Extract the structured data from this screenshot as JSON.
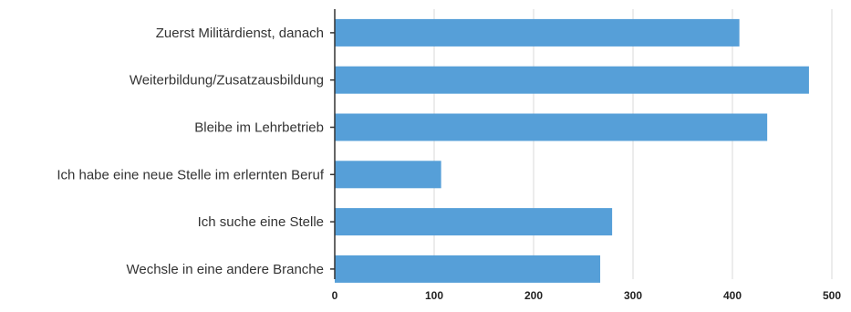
{
  "chart_data": {
    "type": "bar",
    "orientation": "horizontal",
    "categories": [
      "Zuerst Militärdienst, danach",
      "Weiterbildung/Zusatzausbildung",
      "Bleibe im Lehrbetrieb",
      "Ich habe eine neue Stelle im erlernten Beruf",
      "Ich suche eine Stelle",
      "Wechsle in eine andere Branche"
    ],
    "values": [
      407,
      477,
      435,
      107,
      279,
      267
    ],
    "title": "",
    "xlabel": "",
    "ylabel": "",
    "xlim": [
      0,
      500
    ],
    "xticks": [
      0,
      100,
      200,
      300,
      400,
      500
    ],
    "xtick_labels": [
      "0",
      "100",
      "200",
      "300",
      "400",
      "500"
    ],
    "grid": "vertical",
    "legend": "none",
    "colors": {
      "bar": "#569fd8",
      "grid": "#d9d9d9",
      "axis": "#333333"
    }
  }
}
